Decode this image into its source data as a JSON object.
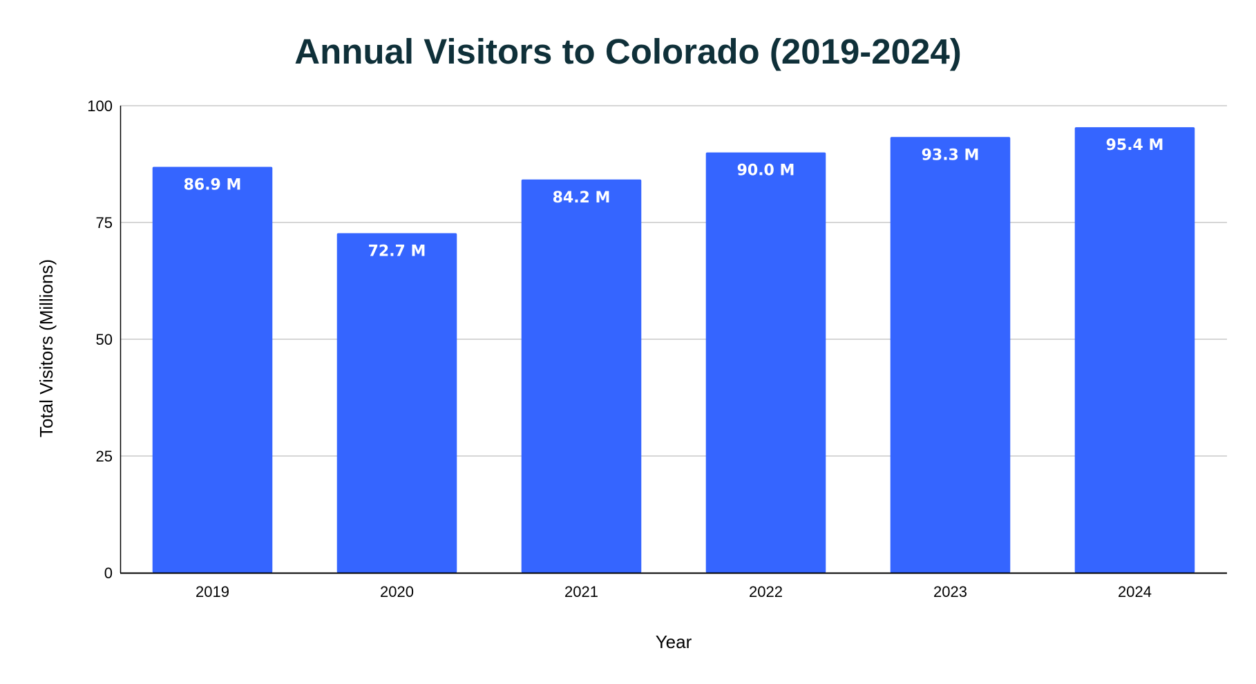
{
  "chart_data": {
    "type": "bar",
    "title": "Annual Visitors to Colorado (2019-2024)",
    "xlabel": "Year",
    "ylabel": "Total Visitors (Millions)",
    "categories": [
      "2019",
      "2020",
      "2021",
      "2022",
      "2023",
      "2024"
    ],
    "values": [
      86.9,
      72.7,
      84.2,
      90.0,
      93.3,
      95.4
    ],
    "data_labels": [
      "86.9 M",
      "72.7 M",
      "84.2 M",
      "90.0 M",
      "93.3 M",
      "95.4 M"
    ],
    "ylim": [
      0,
      100
    ],
    "yticks": [
      0,
      25,
      50,
      75,
      100
    ],
    "ytick_labels": [
      "0",
      "25",
      "50",
      "75",
      "100"
    ],
    "grid": true,
    "legend": "none"
  },
  "colors": {
    "bar": "#3565ff",
    "title": "#0f3039",
    "gridline": "#c8c8c8",
    "axis": "#000000",
    "data_label": "#ffffff"
  }
}
